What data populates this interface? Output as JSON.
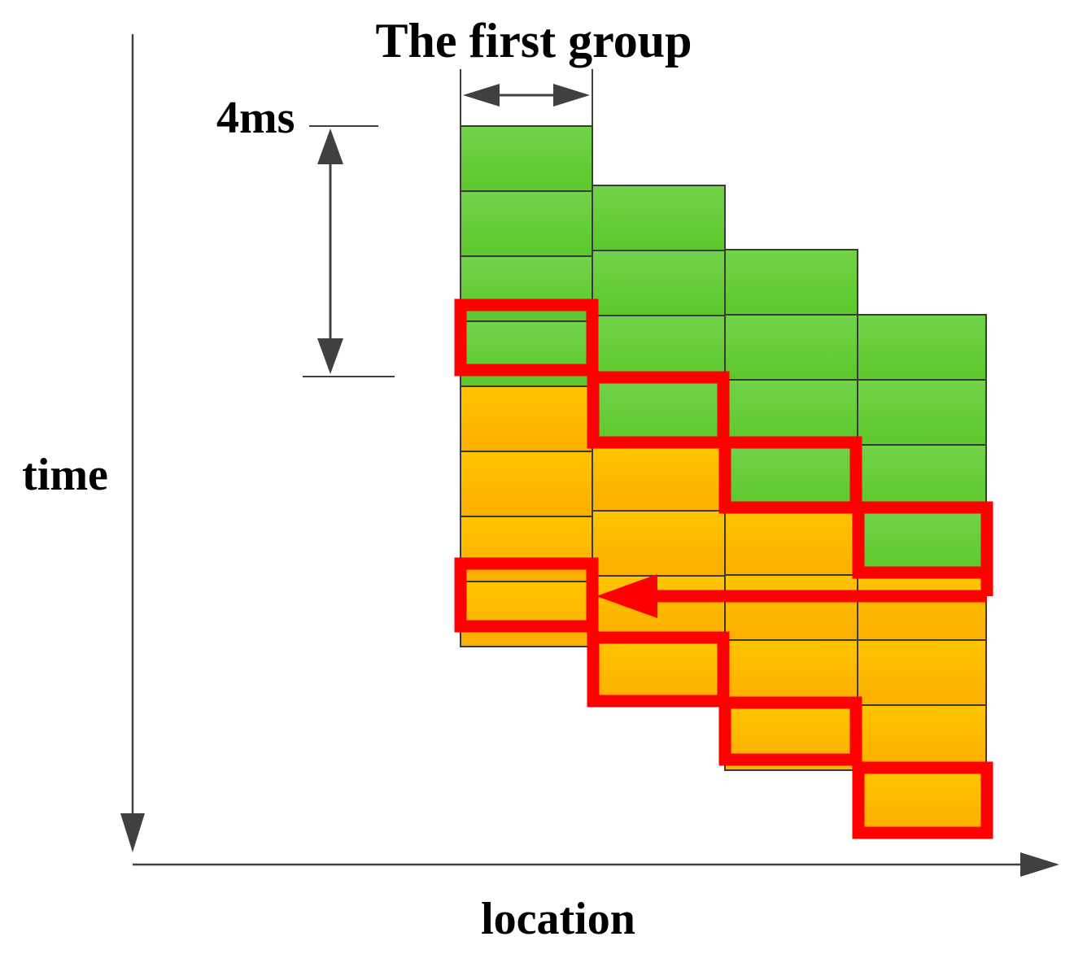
{
  "labels": {
    "title": "The first group",
    "duration": "4ms",
    "y_axis": "time",
    "x_axis": "location"
  },
  "colors": {
    "green_top": "#72d24a",
    "green_bottom": "#5cc82a",
    "orange_top": "#ffc400",
    "orange_bottom": "#fcae00",
    "grid_line": "#3a3a3a",
    "highlight": "#ff0000",
    "axis": "#404040"
  },
  "grid": {
    "columns": [
      {
        "cells": [
          "green",
          "green",
          "green",
          "green",
          "orange",
          "orange",
          "orange",
          "orange"
        ]
      },
      {
        "cells": [
          "green",
          "green",
          "green",
          "green",
          "orange",
          "orange",
          "orange",
          "orange"
        ]
      },
      {
        "cells": [
          "green",
          "green",
          "green",
          "green",
          "orange",
          "orange",
          "orange",
          "orange"
        ]
      },
      {
        "cells": [
          "green",
          "green",
          "green",
          "green",
          "orange",
          "orange",
          "orange",
          "orange"
        ]
      }
    ]
  }
}
